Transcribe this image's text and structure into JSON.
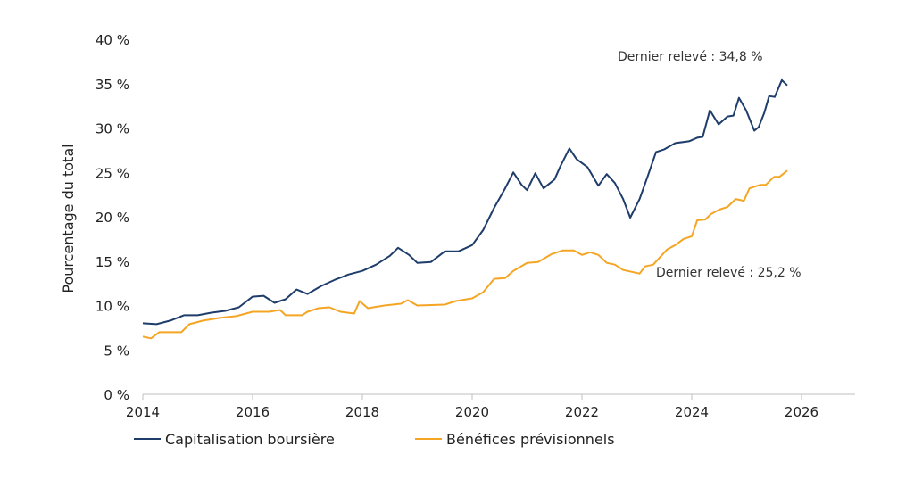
{
  "chart_data": {
    "type": "line",
    "title": "",
    "xlabel": "",
    "ylabel": "Pourcentage du total",
    "xlim": [
      2014,
      2027
    ],
    "ylim": [
      0,
      40
    ],
    "grid": false,
    "legend_position": "bottom",
    "x_ticks": [
      "2014",
      "2016",
      "2018",
      "2020",
      "2022",
      "2024",
      "2026"
    ],
    "y_ticks": [
      "0 %",
      "5 %",
      "10 %",
      "15 %",
      "20 %",
      "25 %",
      "30 %",
      "35 %",
      "40 %"
    ],
    "annotations": [
      "Dernier relevé : 34,8 %",
      "Dernier relevé : 25,2 %"
    ],
    "series": [
      {
        "name": "Capitalisation boursière",
        "color": "#1f3d6b",
        "x": [
          2014.0,
          2014.25,
          2014.5,
          2014.75,
          2015.0,
          2015.25,
          2015.5,
          2015.75,
          2016.0,
          2016.2,
          2016.4,
          2016.6,
          2016.8,
          2017.0,
          2017.25,
          2017.5,
          2017.75,
          2018.0,
          2018.25,
          2018.5,
          2018.65,
          2018.85,
          2019.0,
          2019.25,
          2019.5,
          2019.75,
          2020.0,
          2020.2,
          2020.4,
          2020.6,
          2020.75,
          2020.9,
          2021.0,
          2021.15,
          2021.3,
          2021.5,
          2021.6,
          2021.77,
          2021.9,
          2022.1,
          2022.3,
          2022.45,
          2022.6,
          2022.75,
          2022.88,
          2023.05,
          2023.2,
          2023.35,
          2023.5,
          2023.7,
          2023.95,
          2024.1,
          2024.2,
          2024.33,
          2024.49,
          2024.65,
          2024.76,
          2024.86,
          2024.99,
          2025.14,
          2025.22,
          2025.32,
          2025.41,
          2025.51,
          2025.64,
          2025.74
        ],
        "y": [
          8.0,
          7.9,
          8.3,
          8.9,
          8.9,
          9.2,
          9.4,
          9.8,
          11.0,
          11.1,
          10.3,
          10.7,
          11.8,
          11.3,
          12.2,
          12.9,
          13.5,
          13.9,
          14.6,
          15.6,
          16.5,
          15.7,
          14.8,
          14.9,
          16.1,
          16.1,
          16.8,
          18.5,
          21.0,
          23.2,
          25.0,
          23.6,
          23.0,
          24.9,
          23.2,
          24.2,
          25.6,
          27.7,
          26.5,
          25.6,
          23.5,
          24.8,
          23.8,
          22.0,
          19.9,
          22.0,
          24.6,
          27.3,
          27.6,
          28.3,
          28.5,
          28.9,
          29.0,
          32.0,
          30.4,
          31.3,
          31.4,
          33.4,
          32.0,
          29.7,
          30.1,
          31.7,
          33.6,
          33.5,
          35.4,
          34.8
        ]
      },
      {
        "name": "Bénéfices prévisionnels",
        "color": "#f5a524",
        "x": [
          2014.0,
          2014.15,
          2014.3,
          2014.7,
          2014.85,
          2015.1,
          2015.4,
          2015.7,
          2016.0,
          2016.3,
          2016.5,
          2016.6,
          2016.9,
          2017.0,
          2017.2,
          2017.4,
          2017.6,
          2017.85,
          2017.95,
          2018.1,
          2018.4,
          2018.7,
          2018.83,
          2019.0,
          2019.5,
          2019.7,
          2020.0,
          2020.2,
          2020.4,
          2020.6,
          2020.75,
          2021.0,
          2021.2,
          2021.45,
          2021.65,
          2021.85,
          2022.0,
          2022.15,
          2022.3,
          2022.45,
          2022.6,
          2022.75,
          2022.9,
          2023.05,
          2023.15,
          2023.3,
          2023.4,
          2023.55,
          2023.7,
          2023.85,
          2024.0,
          2024.1,
          2024.25,
          2024.35,
          2024.5,
          2024.65,
          2024.8,
          2024.95,
          2025.05,
          2025.25,
          2025.35,
          2025.5,
          2025.6,
          2025.74
        ],
        "y": [
          6.5,
          6.3,
          7.0,
          7.0,
          7.9,
          8.3,
          8.6,
          8.8,
          9.3,
          9.3,
          9.5,
          8.9,
          8.9,
          9.3,
          9.7,
          9.8,
          9.3,
          9.1,
          10.5,
          9.7,
          10.0,
          10.2,
          10.6,
          10.0,
          10.1,
          10.5,
          10.8,
          11.5,
          13.0,
          13.1,
          13.9,
          14.8,
          14.9,
          15.8,
          16.2,
          16.2,
          15.7,
          16.0,
          15.7,
          14.8,
          14.6,
          14.0,
          13.8,
          13.6,
          14.4,
          14.6,
          15.3,
          16.3,
          16.8,
          17.5,
          17.8,
          19.6,
          19.7,
          20.3,
          20.8,
          21.1,
          22.0,
          21.8,
          23.2,
          23.6,
          23.6,
          24.5,
          24.5,
          25.2
        ]
      }
    ]
  }
}
